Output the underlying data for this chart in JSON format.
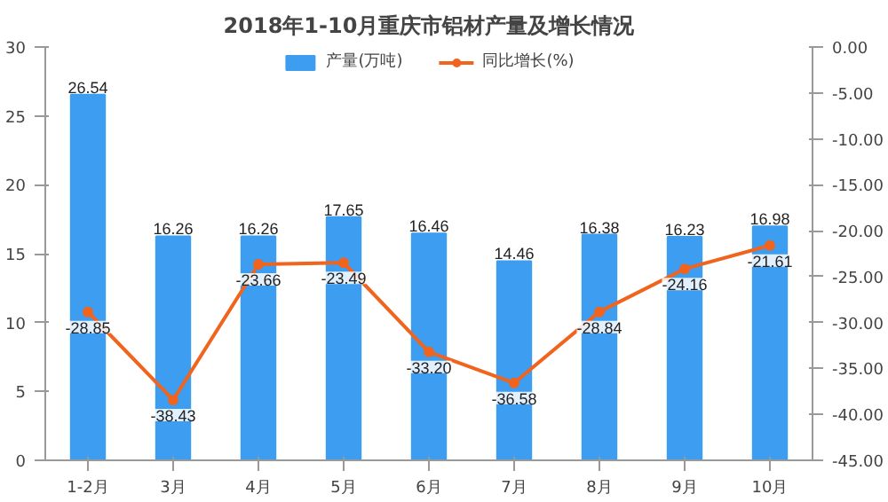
{
  "chart_data": {
    "type": "bar",
    "title": "2018年1-10月重庆市铝材产量及增长情况",
    "categories": [
      "1-2月",
      "3月",
      "4月",
      "5月",
      "6月",
      "7月",
      "8月",
      "9月",
      "10月"
    ],
    "series": [
      {
        "name": "产量(万吨)",
        "color": "#3d9df0",
        "values": [
          26.54,
          16.26,
          16.26,
          17.65,
          16.46,
          14.46,
          16.38,
          16.23,
          16.98
        ],
        "value_labels": [
          "26.54",
          "16.26",
          "16.26",
          "17.65",
          "16.46",
          "14.46",
          "16.38",
          "16.23",
          "16.98"
        ]
      },
      {
        "name": "同比增长(%)",
        "type": "line",
        "axis": "y2",
        "color": "#f0641e",
        "marker": "circle",
        "line_style": "solid",
        "values": [
          -28.85,
          -38.43,
          -23.66,
          -23.49,
          -33.2,
          -36.58,
          -28.84,
          -24.16,
          -21.61
        ],
        "value_labels": [
          "-28.85",
          "-38.43",
          "-23.66",
          "-23.49",
          "-33.20",
          "-36.58",
          "-28.84",
          "-24.16",
          "-21.61"
        ]
      }
    ],
    "ylim": [
      0,
      30
    ],
    "yticks": [
      0,
      5,
      10,
      15,
      20,
      25,
      30
    ],
    "y2lim": [
      -45,
      0
    ],
    "y2ticks": [
      {
        "value": 0,
        "label": "0.00"
      },
      {
        "value": -5,
        "label": "-5.00"
      },
      {
        "value": -10,
        "label": "-10.00"
      },
      {
        "value": -15,
        "label": "-15.00"
      },
      {
        "value": -20,
        "label": "-20.00"
      },
      {
        "value": -25,
        "label": "-25.00"
      },
      {
        "value": -30,
        "label": "-30.00"
      },
      {
        "value": -35,
        "label": "-35.00"
      },
      {
        "value": -40,
        "label": "-40.00"
      },
      {
        "value": -45,
        "label": "-45.00"
      }
    ],
    "grid": false,
    "legend": "top"
  }
}
